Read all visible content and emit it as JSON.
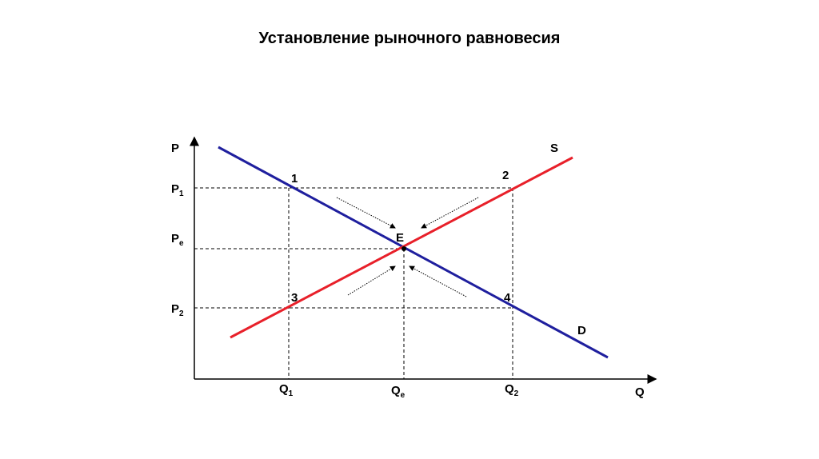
{
  "header": {
    "title": "Установление рыночного равновесия"
  },
  "axes": {
    "y": "P",
    "x": "Q"
  },
  "price_levels": [
    {
      "base": "P",
      "sub": "1"
    },
    {
      "base": "P",
      "sub": "e"
    },
    {
      "base": "P",
      "sub": "2"
    }
  ],
  "quantity_levels": [
    {
      "base": "Q",
      "sub": "1"
    },
    {
      "base": "Q",
      "sub": "e"
    },
    {
      "base": "Q",
      "sub": "2"
    }
  ],
  "points": [
    "1",
    "2",
    "3",
    "4"
  ],
  "equilibrium": "E",
  "curves": {
    "supply": "S",
    "demand": "D"
  }
}
